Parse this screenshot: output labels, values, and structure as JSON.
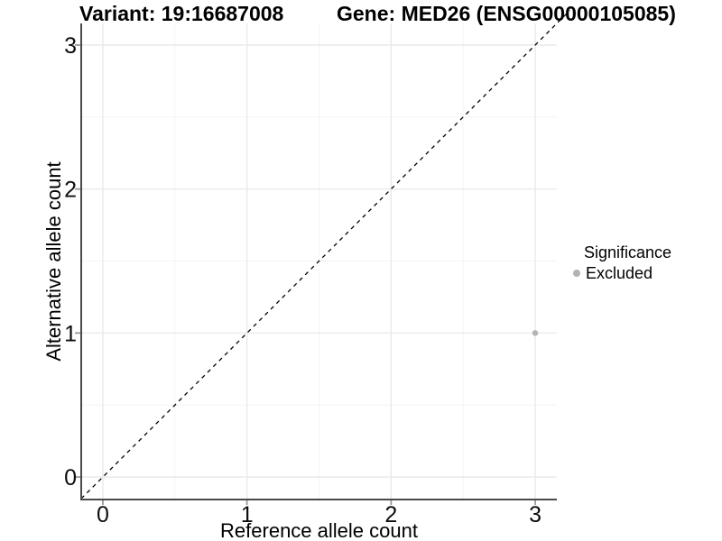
{
  "header": {
    "variant_title": "Variant: 19:16687008",
    "gene_title": "Gene: MED26 (ENSG00000105085)"
  },
  "chart_data": {
    "type": "scatter",
    "xlabel": "Reference allele count",
    "ylabel": "Alternative allele count",
    "xlim": [
      -0.15,
      3.15
    ],
    "ylim": [
      -0.15,
      3.15
    ],
    "xticks": [
      0,
      1,
      2,
      3
    ],
    "yticks": [
      0,
      1,
      2,
      3
    ],
    "minor_ticks": [
      0.5,
      1.5,
      2.5
    ],
    "grid": "major and minor, light grey on white",
    "reference_line": {
      "type": "identity y=x",
      "style": "dashed",
      "color": "#000000"
    },
    "series": [
      {
        "name": "Excluded",
        "color": "#b3b3b3",
        "points": [
          {
            "x": 3,
            "y": 1
          }
        ]
      }
    ],
    "legend": {
      "title": "Significance",
      "position": "right",
      "items": [
        {
          "label": "Excluded",
          "color": "#b3b3b3",
          "marker": "point-icon"
        }
      ]
    }
  },
  "colors": {
    "background": "#ffffff",
    "grid_major": "#e8e8e8",
    "grid_minor": "#f4f4f4",
    "axis_line": "#4a4a4a",
    "tick_mark": "#9a9a9a",
    "tick_label": "#0d0d0d",
    "point": "#b3b3b3",
    "reference_line": "#000000"
  }
}
